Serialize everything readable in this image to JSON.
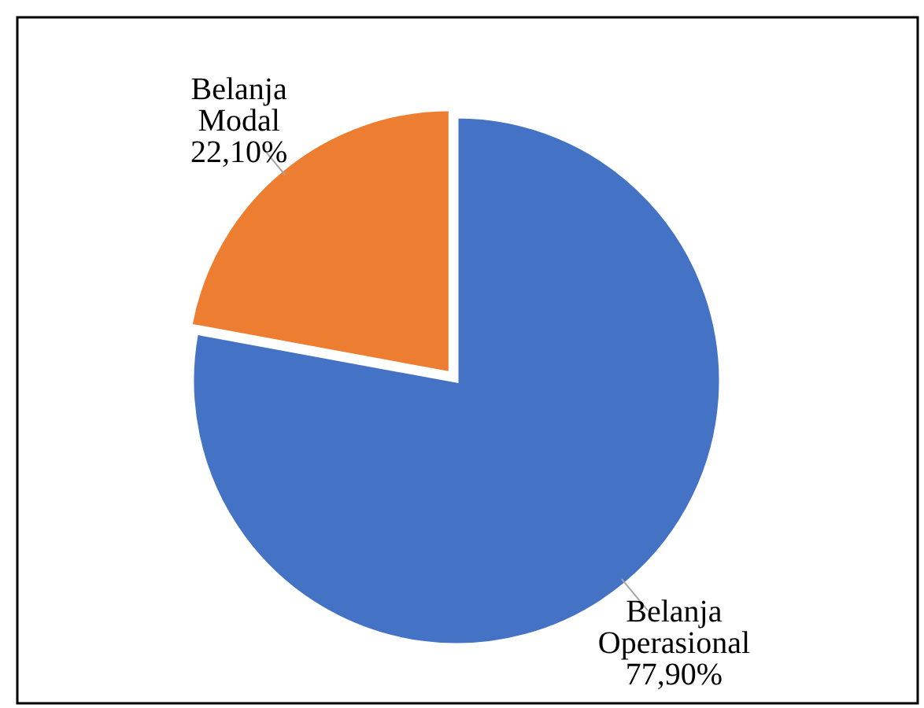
{
  "chart_data": {
    "type": "pie",
    "categories": [
      "Belanja Operasional",
      "Belanja Modal"
    ],
    "values": [
      77.9,
      22.1
    ],
    "colors": [
      "#4472c4",
      "#ed7d31"
    ],
    "value_labels": [
      "77,90%",
      "22,10%"
    ],
    "legend": false
  }
}
